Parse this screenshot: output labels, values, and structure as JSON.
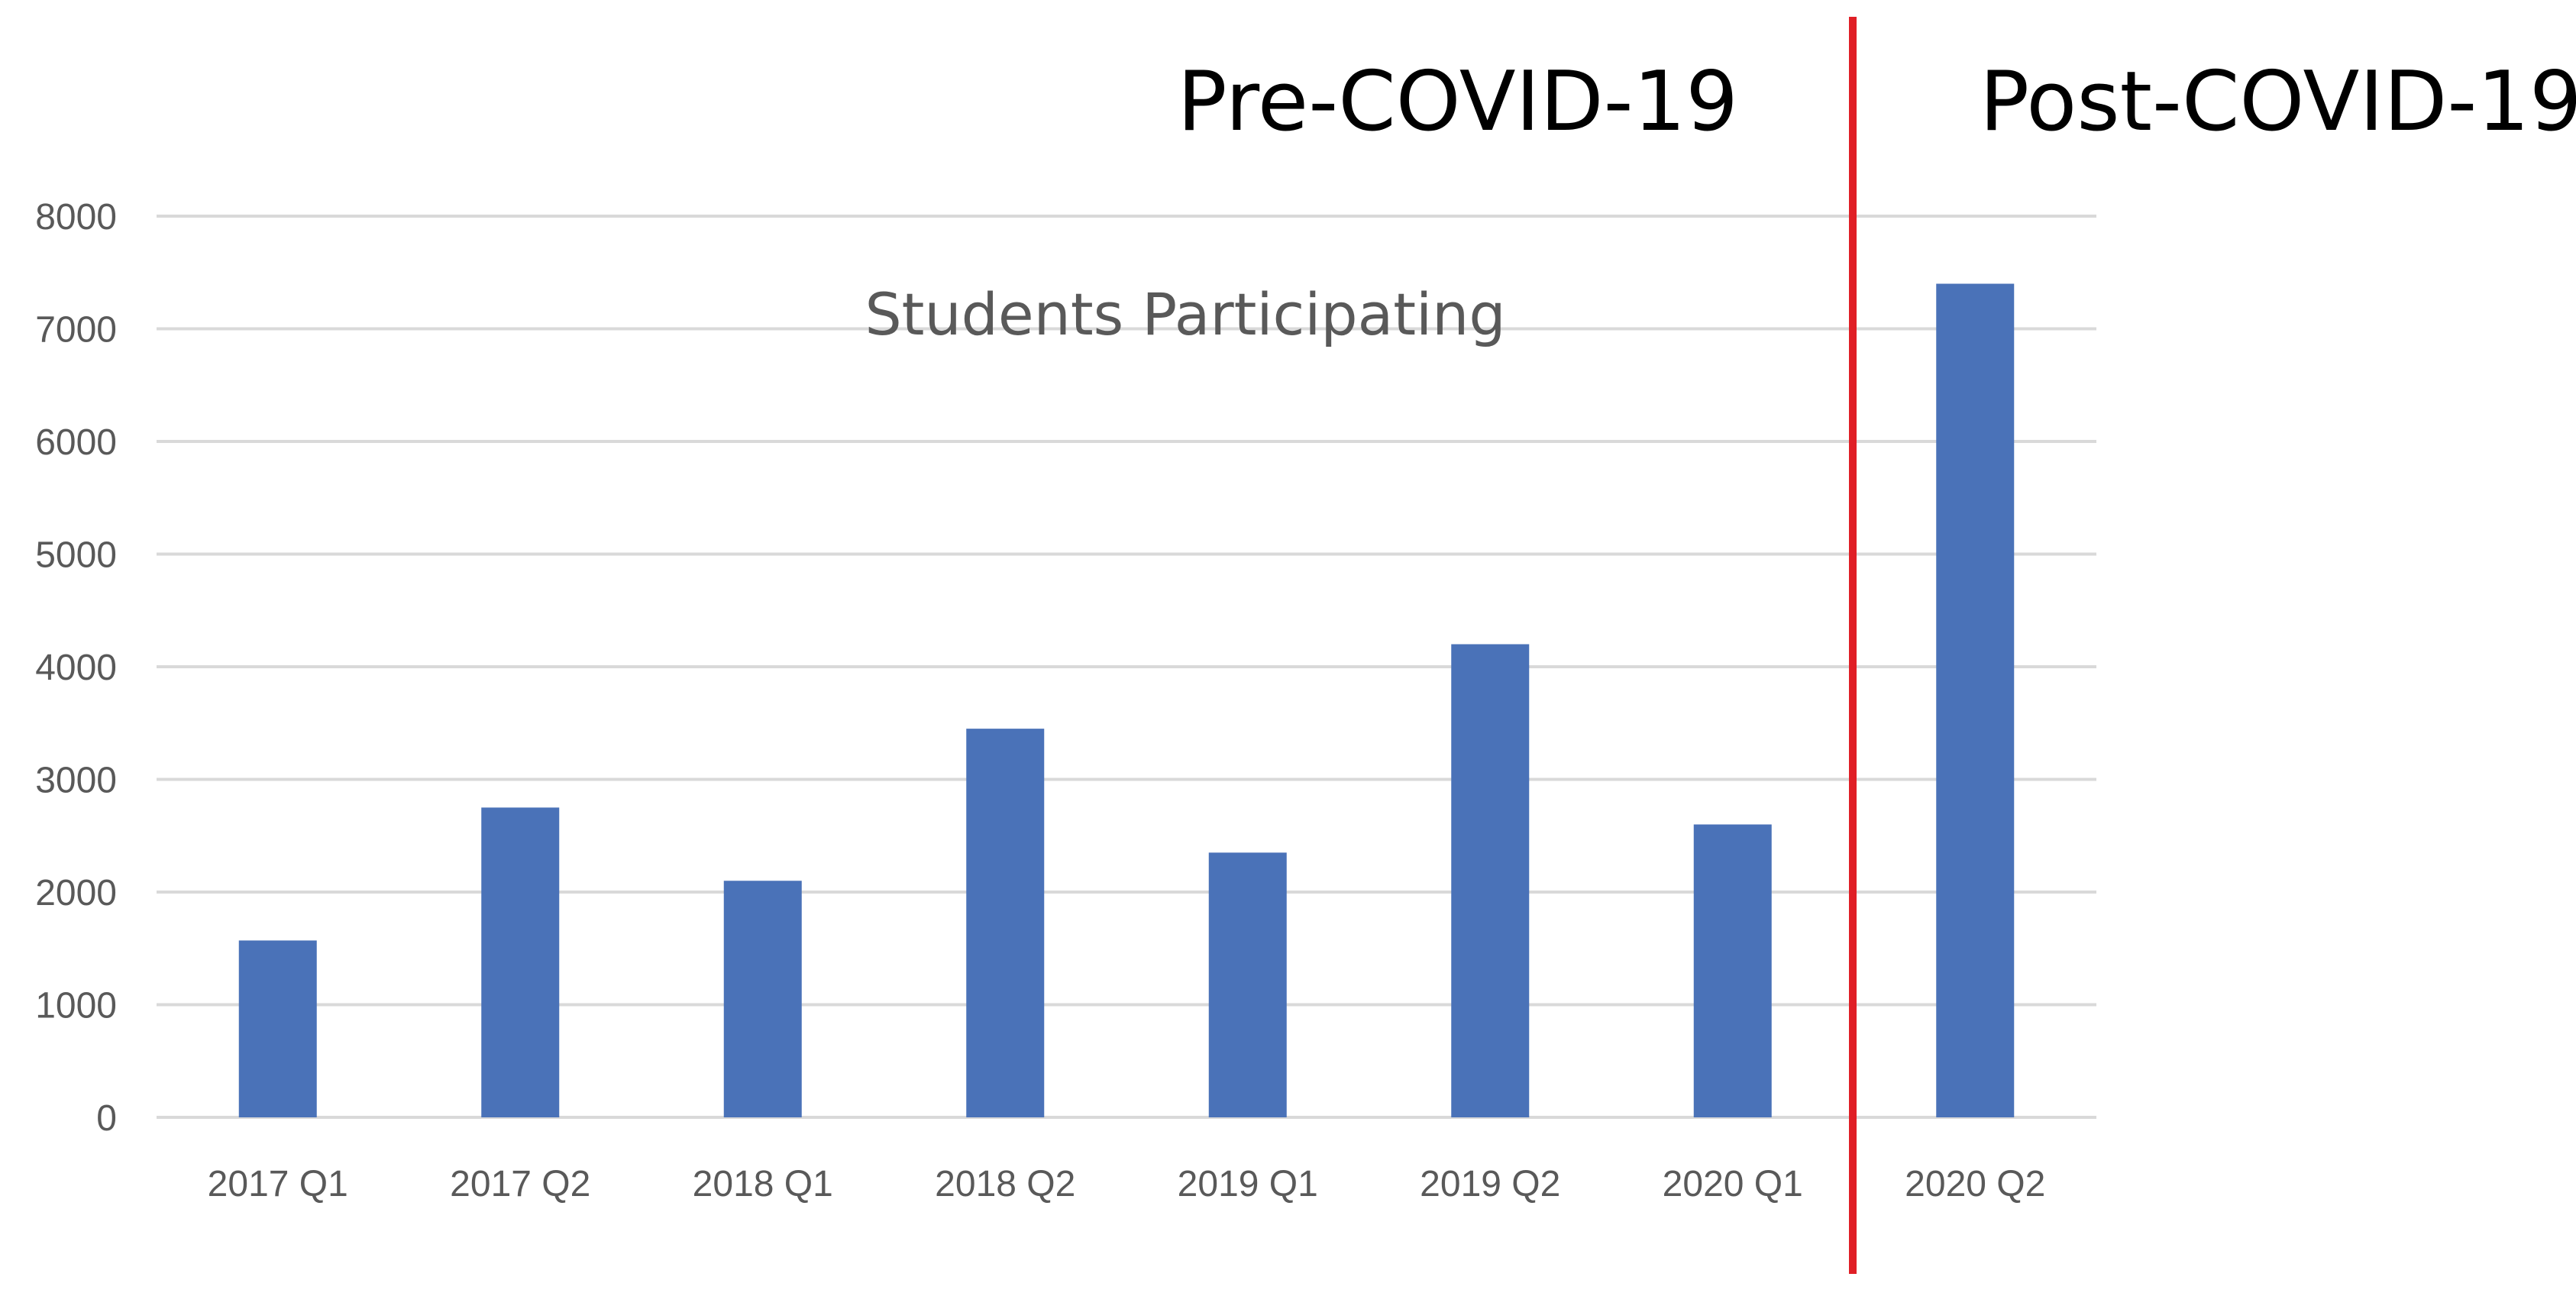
{
  "chart_data": {
    "type": "bar",
    "title": "Students Participating",
    "categories": [
      "2017 Q1",
      "2017 Q2",
      "2018 Q1",
      "2018 Q2",
      "2019 Q1",
      "2019 Q2",
      "2020 Q1",
      "2020 Q2"
    ],
    "values": [
      1570,
      2750,
      2100,
      3450,
      2350,
      4200,
      2600,
      7400
    ],
    "ylim": [
      0,
      8000
    ],
    "yticks": [
      "0",
      "1000",
      "2000",
      "3000",
      "4000",
      "5000",
      "6000",
      "7000",
      "8000"
    ],
    "grid": true,
    "legend": "none",
    "annotations": {
      "pre_label": "Pre-COVID-19",
      "post_label": "Post-COVID-19",
      "divider_after_category": "2020 Q1"
    },
    "colors": {
      "bar": "#4a72b8",
      "grid": "#d9d9d9",
      "divider": "#e01f26",
      "tick_text": "#595959",
      "title_text": "#595959",
      "region_text": "#000000"
    }
  }
}
